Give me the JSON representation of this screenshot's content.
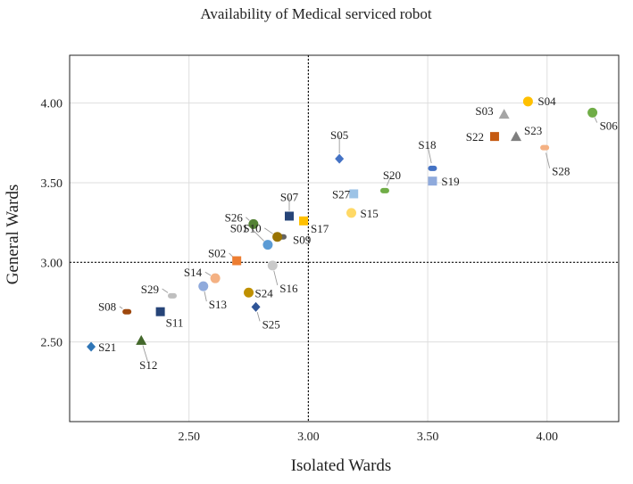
{
  "chart_data": {
    "type": "scatter",
    "title": "Availability of Medical serviced robot",
    "xlabel": "Isolated Wards",
    "ylabel": "General Wards",
    "xlim": [
      2.0,
      4.3
    ],
    "ylim": [
      2.0,
      4.3
    ],
    "xticks": [
      "2.50",
      "3.00",
      "3.50",
      "4.00"
    ],
    "yticks": [
      "2.50",
      "3.00",
      "3.50",
      "4.00"
    ],
    "reference_lines": {
      "x": 3.0,
      "y": 3.0
    },
    "grid": true,
    "points": [
      {
        "label": "S01",
        "x": 2.83,
        "y": 3.11,
        "marker": "circle",
        "color": "#5b9bd5"
      },
      {
        "label": "S02",
        "x": 2.7,
        "y": 3.01,
        "marker": "square",
        "color": "#ed7d31"
      },
      {
        "label": "S03",
        "x": 3.82,
        "y": 3.93,
        "marker": "triangle",
        "color": "#a5a5a5"
      },
      {
        "label": "S04",
        "x": 3.92,
        "y": 4.01,
        "marker": "circle",
        "color": "#ffc000"
      },
      {
        "label": "S05",
        "x": 3.13,
        "y": 3.65,
        "marker": "diamond",
        "color": "#4472c4"
      },
      {
        "label": "S06",
        "x": 4.19,
        "y": 3.94,
        "marker": "circle",
        "color": "#70ad47"
      },
      {
        "label": "S07",
        "x": 2.92,
        "y": 3.29,
        "marker": "square",
        "color": "#264478"
      },
      {
        "label": "S08",
        "x": 2.24,
        "y": 2.69,
        "marker": "dash",
        "color": "#9e480e"
      },
      {
        "label": "S09",
        "x": 2.89,
        "y": 3.16,
        "marker": "dash",
        "color": "#636363"
      },
      {
        "label": "S10",
        "x": 2.87,
        "y": 3.16,
        "marker": "circle",
        "color": "#997300"
      },
      {
        "label": "S11",
        "x": 2.38,
        "y": 2.69,
        "marker": "square",
        "color": "#264478"
      },
      {
        "label": "S12",
        "x": 2.3,
        "y": 2.51,
        "marker": "triangle",
        "color": "#43682b"
      },
      {
        "label": "S13",
        "x": 2.56,
        "y": 2.85,
        "marker": "circle",
        "color": "#8faadc"
      },
      {
        "label": "S14",
        "x": 2.61,
        "y": 2.9,
        "marker": "circle",
        "color": "#f4b183"
      },
      {
        "label": "S15",
        "x": 3.18,
        "y": 3.31,
        "marker": "circle",
        "color": "#ffd966"
      },
      {
        "label": "S16",
        "x": 2.85,
        "y": 2.98,
        "marker": "circle",
        "color": "#c9c9c9"
      },
      {
        "label": "S17",
        "x": 2.98,
        "y": 3.26,
        "marker": "square",
        "color": "#ffc000"
      },
      {
        "label": "S18",
        "x": 3.52,
        "y": 3.59,
        "marker": "dash",
        "color": "#4472c4"
      },
      {
        "label": "S19",
        "x": 3.52,
        "y": 3.51,
        "marker": "square",
        "color": "#8faadc"
      },
      {
        "label": "S20",
        "x": 3.32,
        "y": 3.45,
        "marker": "dash",
        "color": "#70ad47"
      },
      {
        "label": "S21",
        "x": 2.09,
        "y": 2.47,
        "marker": "diamond",
        "color": "#2e75b6"
      },
      {
        "label": "S22",
        "x": 3.78,
        "y": 3.79,
        "marker": "square",
        "color": "#c55a11"
      },
      {
        "label": "S23",
        "x": 3.87,
        "y": 3.79,
        "marker": "triangle",
        "color": "#7f7f7f"
      },
      {
        "label": "S24",
        "x": 2.75,
        "y": 2.81,
        "marker": "circle",
        "color": "#bf9000"
      },
      {
        "label": "S25",
        "x": 2.78,
        "y": 2.72,
        "marker": "diamond",
        "color": "#2f5597"
      },
      {
        "label": "S26",
        "x": 2.77,
        "y": 3.24,
        "marker": "circle",
        "color": "#548235"
      },
      {
        "label": "S27",
        "x": 3.19,
        "y": 3.43,
        "marker": "square",
        "color": "#9dc3e6"
      },
      {
        "label": "S28",
        "x": 3.99,
        "y": 3.72,
        "marker": "dash",
        "color": "#f4b183"
      },
      {
        "label": "S29",
        "x": 2.43,
        "y": 2.79,
        "marker": "dash",
        "color": "#bfbfbf"
      }
    ]
  }
}
